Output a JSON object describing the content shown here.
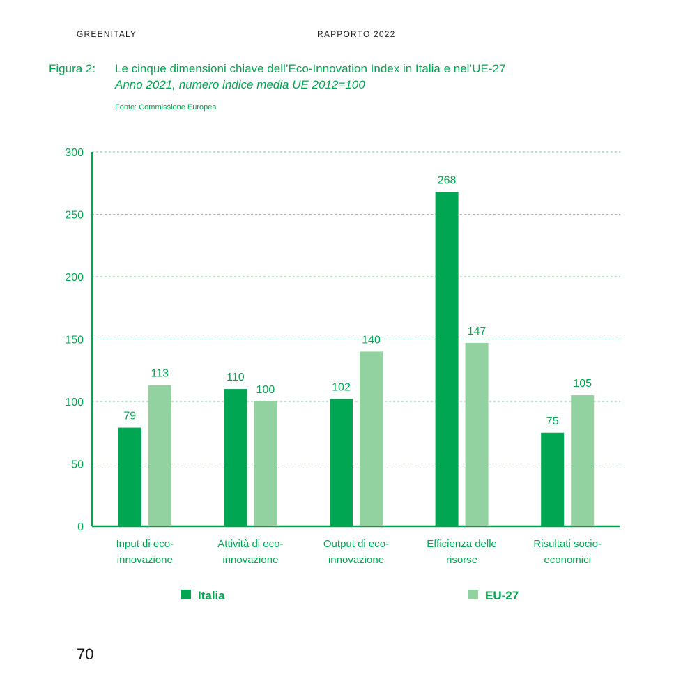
{
  "header": {
    "left": "GREENITALY",
    "right": "RAPPORTO 2022"
  },
  "figure": {
    "label": "Figura 2:",
    "title": "Le cinque dimensioni chiave dell’Eco-Innovation Index in Italia e nel’UE-27",
    "subtitle": "Anno 2021, numero indice media UE 2012=100",
    "source": "Fonte: Commissione Europea"
  },
  "chart_data": {
    "type": "bar",
    "categories": [
      [
        "Input di eco-",
        "innovazione"
      ],
      [
        "Attività di eco-",
        "innovazione"
      ],
      [
        "Output di eco-",
        "innovazione"
      ],
      [
        "Efficienza delle",
        "risorse"
      ],
      [
        "Risultati socio-",
        "economici"
      ]
    ],
    "series": [
      {
        "name": "Italia",
        "values": [
          79,
          110,
          102,
          268,
          75
        ],
        "color": "#00a651"
      },
      {
        "name": "EU-27",
        "values": [
          113,
          100,
          140,
          147,
          105
        ],
        "color": "#92d1a0"
      }
    ],
    "ylim": [
      0,
      300
    ],
    "yticks": [
      0,
      50,
      100,
      150,
      200,
      250,
      300
    ],
    "grid": true,
    "legend_position": "bottom",
    "axis_color": "#00a651",
    "text_color": "#00a651"
  },
  "page_number": "70"
}
